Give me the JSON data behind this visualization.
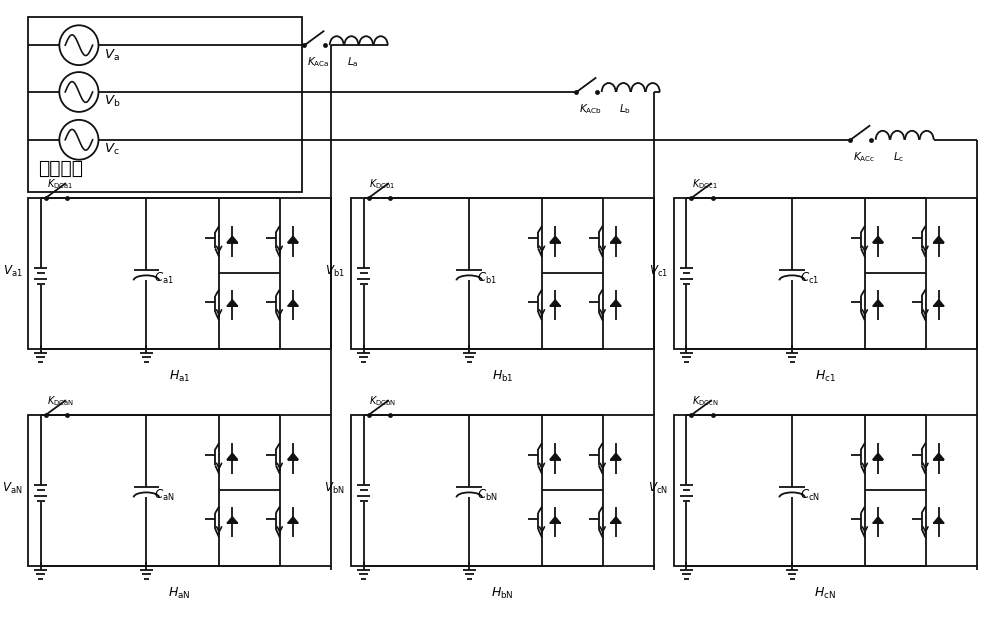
{
  "bg_color": "#ffffff",
  "lc": "#111111",
  "lw": 1.3,
  "chinese_label": "交流电网",
  "phases": [
    "a",
    "b",
    "c"
  ],
  "kac_labels": [
    "K_{ACa}",
    "K_{ACb}",
    "K_{ACc}"
  ],
  "L_labels": [
    "L_a",
    "L_b",
    "L_c"
  ],
  "kdc1_labels": [
    "K_{DCa1}",
    "K_{DCb1}",
    "K_{DCc1}"
  ],
  "kdcN_labels": [
    "K_{DCaN}",
    "K_{DCbN}",
    "K_{DCcN}"
  ],
  "V1_labels": [
    "V_{a1}",
    "V_{b1}",
    "V_{c1}"
  ],
  "VN_labels": [
    "V_{aN}",
    "V_{bN}",
    "V_{cN}"
  ],
  "C1_labels": [
    "C_{a1}",
    "C_{b1}",
    "C_{c1}"
  ],
  "CN_labels": [
    "C_{aN}",
    "C_{bN}",
    "C_{cN}"
  ],
  "H1_labels": [
    "H_{a1}",
    "H_{b1}",
    "H_{c1}"
  ],
  "HN_labels": [
    "H_{aN}",
    "H_{bN}",
    "H_{cN}"
  ]
}
